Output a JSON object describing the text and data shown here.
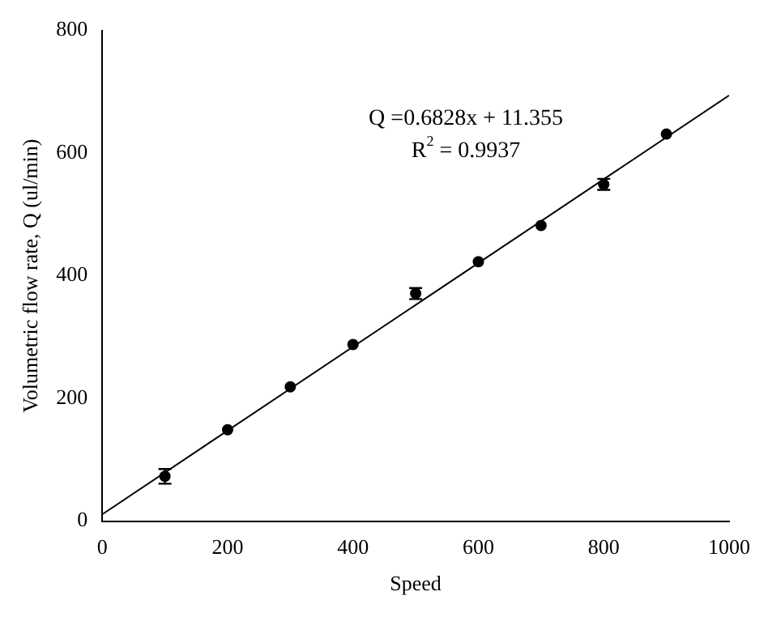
{
  "chart_data": {
    "type": "scatter",
    "xlabel": "Speed",
    "ylabel": "Volumetric flow rate, Q (ul/min)",
    "series": [
      {
        "color": "#000000",
        "x": [
          100,
          200,
          300,
          400,
          500,
          600,
          700,
          800,
          900
        ],
        "values": [
          73,
          149,
          219,
          288,
          371,
          423,
          482,
          549,
          631
        ],
        "errors": [
          12,
          null,
          null,
          null,
          9,
          null,
          null,
          9,
          null
        ],
        "marker": "circle"
      },
      {
        "type": "line",
        "color": "#000000",
        "x": [
          0,
          1000
        ],
        "values": [
          11,
          694
        ],
        "marker": "none",
        "line_style": "solid"
      }
    ],
    "annotations": [
      "Q =0.6828x + 11.355",
      "R$^{2}$ = 0.9937"
    ],
    "xlim": [
      0,
      1000
    ],
    "xticks": [
      0,
      200,
      400,
      600,
      800,
      1000
    ],
    "ylim": [
      0,
      800
    ],
    "yticks": [
      0,
      200,
      400,
      600,
      800
    ],
    "grid": false,
    "legend": false
  }
}
